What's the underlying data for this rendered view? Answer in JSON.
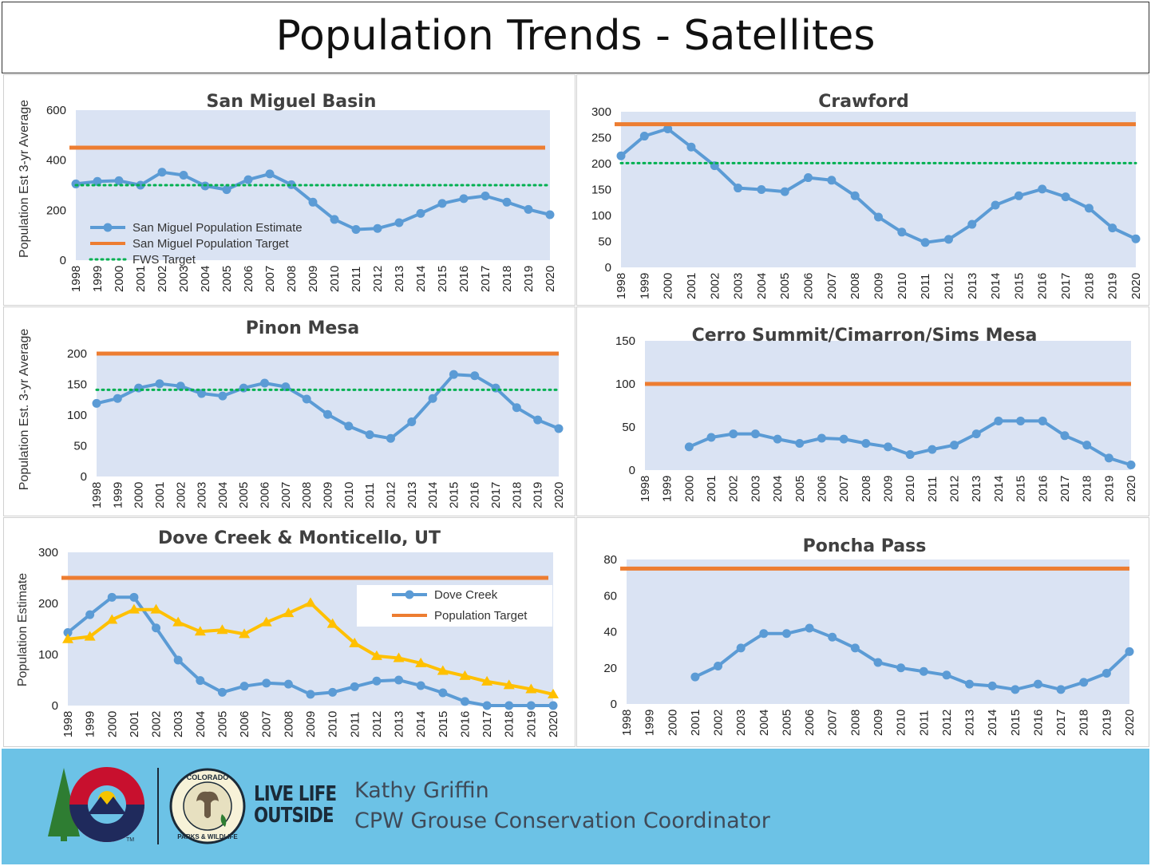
{
  "page_title": "Population Trends - Satellites",
  "footer": {
    "presenter_name": "Kathy Griffin",
    "presenter_role": "CPW Grouse Conservation Coordinator",
    "tagline_1": "LIVE LIFE",
    "tagline_2": "OUTSIDE",
    "badge_top": "COLORADO",
    "badge_bottom": "PARKS & WILDLIFE",
    "tm": "TM"
  },
  "colors": {
    "estimate": "#5b9bd5",
    "target": "#ed7d31",
    "fws": "#00b050",
    "dove_other": "#ffc000",
    "plot_bg": "#dae3f3"
  },
  "chart_data": [
    {
      "type": "line",
      "title": "San Miguel Basin",
      "ylabel": "Population Est 3-yr Average",
      "ylim": [
        0,
        600
      ],
      "yticks": [
        0,
        200,
        400,
        600
      ],
      "x": [
        "1998",
        "1999",
        "2000",
        "2001",
        "2002",
        "2003",
        "2004",
        "2005",
        "2006",
        "2007",
        "2008",
        "2009",
        "2010",
        "2011",
        "2012",
        "2013",
        "2014",
        "2015",
        "2016",
        "2017",
        "2018",
        "2019",
        "2020"
      ],
      "series": [
        {
          "name": "San Miguel Population Estimate",
          "style": "marker-line",
          "color": "#5b9bd5",
          "values": [
            305,
            315,
            318,
            300,
            352,
            340,
            297,
            282,
            322,
            345,
            302,
            232,
            163,
            123,
            127,
            150,
            187,
            227,
            246,
            257,
            232,
            203,
            182
          ]
        },
        {
          "name": "San Miguel Population Target",
          "style": "flat",
          "color": "#ed7d31",
          "values": [
            450,
            450,
            450,
            450,
            450,
            450,
            450,
            450,
            450,
            450,
            450,
            450,
            450,
            450,
            450,
            450,
            450,
            450,
            450,
            450,
            450,
            450,
            450
          ]
        },
        {
          "name": "FWS Target",
          "style": "dotted",
          "color": "#00b050",
          "values": [
            300,
            300,
            300,
            300,
            300,
            300,
            300,
            300,
            300,
            300,
            300,
            300,
            300,
            300,
            300,
            300,
            300,
            300,
            300,
            300,
            300,
            300,
            300
          ]
        }
      ],
      "legend": "bottom-left"
    },
    {
      "type": "line",
      "title": "Crawford",
      "ylabel": "",
      "ylim": [
        0,
        300
      ],
      "yticks": [
        0,
        50,
        100,
        150,
        200,
        250,
        300
      ],
      "x": [
        "1998",
        "1999",
        "2000",
        "2001",
        "2002",
        "2003",
        "2004",
        "2005",
        "2006",
        "2007",
        "2008",
        "2009",
        "2010",
        "2011",
        "2012",
        "2013",
        "2014",
        "2015",
        "2016",
        "2017",
        "2018",
        "2019",
        "2020"
      ],
      "series": [
        {
          "style": "marker-line",
          "color": "#5b9bd5",
          "values": [
            215,
            253,
            267,
            232,
            196,
            153,
            150,
            146,
            173,
            168,
            138,
            97,
            68,
            48,
            54,
            83,
            120,
            138,
            151,
            136,
            114,
            76,
            55
          ]
        },
        {
          "style": "flat",
          "color": "#ed7d31",
          "values": [
            276,
            276,
            276,
            276,
            276,
            276,
            276,
            276,
            276,
            276,
            276,
            276,
            276,
            276,
            276,
            276,
            276,
            276,
            276,
            276,
            276,
            276,
            276
          ]
        },
        {
          "style": "dotted",
          "color": "#00b050",
          "values": [
            201,
            201,
            201,
            201,
            201,
            201,
            201,
            201,
            201,
            201,
            201,
            201,
            201,
            201,
            201,
            201,
            201,
            201,
            201,
            201,
            201,
            201,
            201
          ]
        }
      ]
    },
    {
      "type": "line",
      "title": "Pinon Mesa",
      "ylabel": "Population Est. 3-yr Average",
      "ylim": [
        0,
        200
      ],
      "yticks": [
        0,
        50,
        100,
        150,
        200
      ],
      "x": [
        "1998",
        "1999",
        "2000",
        "2001",
        "2002",
        "2003",
        "2004",
        "2005",
        "2006",
        "2007",
        "2008",
        "2009",
        "2010",
        "2011",
        "2012",
        "2013",
        "2014",
        "2015",
        "2016",
        "2017",
        "2018",
        "2019",
        "2020"
      ],
      "series": [
        {
          "style": "marker-line",
          "color": "#5b9bd5",
          "values": [
            119,
            127,
            144,
            151,
            147,
            135,
            131,
            144,
            152,
            146,
            126,
            101,
            82,
            68,
            62,
            89,
            127,
            166,
            164,
            144,
            112,
            92,
            78
          ]
        },
        {
          "style": "flat",
          "color": "#ed7d31",
          "values": [
            200,
            200,
            200,
            200,
            200,
            200,
            200,
            200,
            200,
            200,
            200,
            200,
            200,
            200,
            200,
            200,
            200,
            200,
            200,
            200,
            200,
            200,
            200
          ]
        },
        {
          "style": "dotted",
          "color": "#00b050",
          "values": [
            141,
            141,
            141,
            141,
            141,
            141,
            141,
            141,
            141,
            141,
            141,
            141,
            141,
            141,
            141,
            141,
            141,
            141,
            141,
            141,
            141,
            141,
            141
          ]
        }
      ]
    },
    {
      "type": "line",
      "title": "Cerro Summit/Cimarron/Sims Mesa",
      "ylabel": "",
      "ylim": [
        0,
        150
      ],
      "yticks": [
        0,
        50,
        100,
        150
      ],
      "x": [
        "1998",
        "1999",
        "2000",
        "2001",
        "2002",
        "2003",
        "2004",
        "2005",
        "2006",
        "2007",
        "2008",
        "2009",
        "2010",
        "2011",
        "2012",
        "2013",
        "2014",
        "2015",
        "2016",
        "2017",
        "2018",
        "2019",
        "2020"
      ],
      "series": [
        {
          "style": "marker-line",
          "color": "#5b9bd5",
          "values": [
            null,
            null,
            27,
            38,
            42,
            42,
            36,
            31,
            37,
            36,
            31,
            27,
            18,
            24,
            29,
            42,
            57,
            57,
            57,
            40,
            29,
            14,
            6
          ]
        },
        {
          "style": "flat",
          "color": "#ed7d31",
          "values": [
            100,
            100,
            100,
            100,
            100,
            100,
            100,
            100,
            100,
            100,
            100,
            100,
            100,
            100,
            100,
            100,
            100,
            100,
            100,
            100,
            100,
            100,
            100
          ]
        }
      ]
    },
    {
      "type": "line",
      "title": "Dove Creek & Monticello, UT",
      "ylabel": "Population Estimate",
      "ylim": [
        0,
        300
      ],
      "yticks": [
        0,
        100,
        200,
        300
      ],
      "x": [
        "1998",
        "1999",
        "2000",
        "2001",
        "2002",
        "2003",
        "2004",
        "2005",
        "2006",
        "2007",
        "2008",
        "2009",
        "2010",
        "2011",
        "2012",
        "2013",
        "2014",
        "2015",
        "2016",
        "2017",
        "2018",
        "2019",
        "2020"
      ],
      "series": [
        {
          "name": "Dove Creek",
          "style": "marker-line",
          "color": "#5b9bd5",
          "values": [
            143,
            178,
            212,
            212,
            152,
            89,
            49,
            26,
            38,
            44,
            42,
            22,
            26,
            37,
            48,
            50,
            39,
            25,
            8,
            0,
            0,
            0,
            0
          ]
        },
        {
          "style": "triangle-line",
          "color": "#ffc000",
          "values": [
            130,
            135,
            168,
            188,
            188,
            163,
            145,
            148,
            140,
            163,
            181,
            201,
            160,
            122,
            97,
            93,
            83,
            68,
            58,
            47,
            40,
            32,
            22
          ]
        },
        {
          "name": "Population Target",
          "style": "flat",
          "color": "#ed7d31",
          "values": [
            250,
            250,
            250,
            250,
            250,
            250,
            250,
            250,
            250,
            250,
            250,
            250,
            250,
            250,
            250,
            250,
            250,
            250,
            250,
            250,
            250,
            250,
            250
          ]
        }
      ],
      "legend": "top-right"
    },
    {
      "type": "line",
      "title": "Poncha Pass",
      "ylabel": "",
      "ylim": [
        0,
        80
      ],
      "yticks": [
        0,
        20,
        40,
        60,
        80
      ],
      "x": [
        "1998",
        "1999",
        "2000",
        "2001",
        "2002",
        "2003",
        "2004",
        "2005",
        "2006",
        "2007",
        "2008",
        "2009",
        "2010",
        "2011",
        "2012",
        "2013",
        "2014",
        "2015",
        "2016",
        "2017",
        "2018",
        "2019",
        "2020"
      ],
      "series": [
        {
          "style": "marker-line",
          "color": "#5b9bd5",
          "values": [
            null,
            null,
            null,
            15,
            21,
            31,
            39,
            39,
            42,
            37,
            31,
            23,
            20,
            18,
            16,
            11,
            10,
            8,
            11,
            8,
            12,
            17,
            29
          ]
        },
        {
          "style": "flat",
          "color": "#ed7d31",
          "values": [
            75,
            75,
            75,
            75,
            75,
            75,
            75,
            75,
            75,
            75,
            75,
            75,
            75,
            75,
            75,
            75,
            75,
            75,
            75,
            75,
            75,
            75,
            75
          ]
        }
      ]
    }
  ]
}
